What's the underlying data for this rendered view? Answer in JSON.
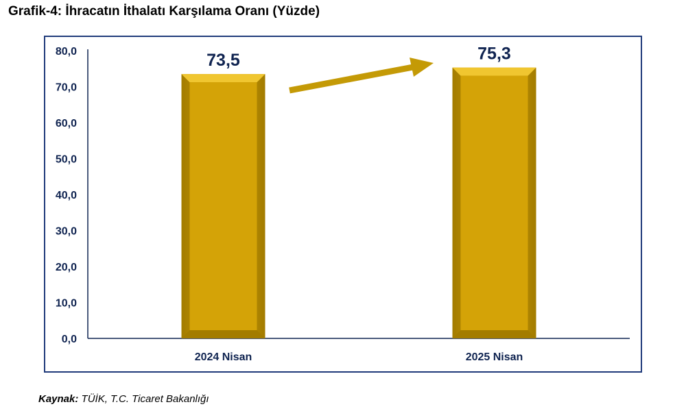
{
  "title": "Grafik-4: İhracatın İthalatı Karşılama Oranı (Yüzde)",
  "source": {
    "label": "Kaynak:",
    "text": " TÜİK, T.C. Ticaret Bakanlığı"
  },
  "colors": {
    "bar": "#d4a307",
    "bar_light": "#f0c630",
    "bar_dark": "#a37c00",
    "arrow": "#c49a06",
    "axis": "#0f2350",
    "frame": "#1f3a7a"
  },
  "chart_data": {
    "type": "bar",
    "categories": [
      "2024 Nisan",
      "2025 Nisan"
    ],
    "values": [
      73.5,
      75.3
    ],
    "data_labels": [
      "73,5",
      "75,3"
    ],
    "ylim": [
      0,
      80
    ],
    "yticks": [
      "0,0",
      "10,0",
      "20,0",
      "30,0",
      "40,0",
      "50,0",
      "60,0",
      "70,0",
      "80,0"
    ],
    "grid": false,
    "annotation": "arrow-up-right"
  }
}
